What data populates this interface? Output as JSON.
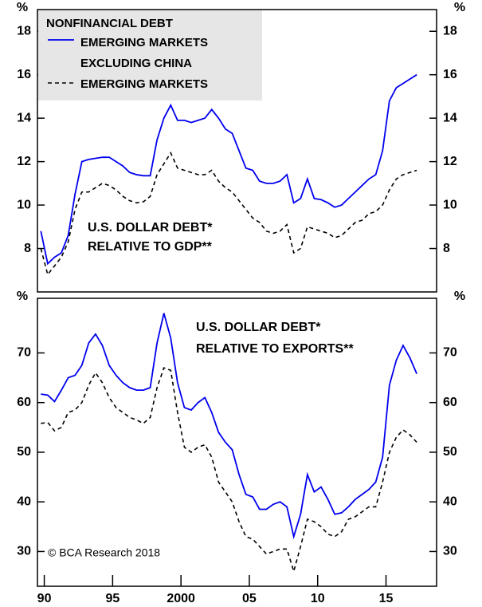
{
  "chart_data": [
    {
      "type": "line",
      "y_unit": "%",
      "legend_title": "NONFINANCIAL DEBT",
      "annotation": [
        "U.S. DOLLAR DEBT*",
        "RELATIVE TO GDP**"
      ],
      "xlim": [
        1989.5,
        2018.7
      ],
      "ylim": [
        6,
        19
      ],
      "yticks": [
        8,
        10,
        12,
        14,
        16,
        18
      ],
      "x": [
        1989.75,
        1990.25,
        1990.75,
        1991.25,
        1991.75,
        1992.25,
        1992.75,
        1993.25,
        1993.75,
        1994.25,
        1994.75,
        1995.25,
        1995.75,
        1996.25,
        1996.75,
        1997.25,
        1997.75,
        1998.25,
        1998.75,
        1999.25,
        1999.75,
        2000.25,
        2000.75,
        2001.25,
        2001.75,
        2002.25,
        2002.75,
        2003.25,
        2003.75,
        2004.25,
        2004.75,
        2005.25,
        2005.75,
        2006.25,
        2006.75,
        2007.25,
        2007.75,
        2008.25,
        2008.75,
        2009.25,
        2009.75,
        2010.25,
        2010.75,
        2011.25,
        2011.75,
        2012.25,
        2012.75,
        2013.25,
        2013.75,
        2014.25,
        2014.75,
        2015.25,
        2015.75,
        2016.25,
        2016.75,
        2017.25
      ],
      "series": [
        {
          "name": [
            "EMERGING MARKETS"
          ],
          "color": "#0000ee",
          "dashed": false,
          "values": [
            8.8,
            7.3,
            7.6,
            7.8,
            8.6,
            10.5,
            12.0,
            12.1,
            12.15,
            12.2,
            12.2,
            12.0,
            11.8,
            11.5,
            11.4,
            11.35,
            11.35,
            13.0,
            14.0,
            14.6,
            13.9,
            13.9,
            13.8,
            13.9,
            14.0,
            14.4,
            14.0,
            13.5,
            13.3,
            12.5,
            11.7,
            11.6,
            11.1,
            11.0,
            11.0,
            11.1,
            11.4,
            10.1,
            10.3,
            11.2,
            10.3,
            10.25,
            10.1,
            9.9,
            10.0,
            10.3,
            10.6,
            10.9,
            11.2,
            11.4,
            12.5,
            14.8,
            15.4,
            15.6,
            15.8,
            16.0
          ]
        },
        {
          "name": [
            "EXCLUDING CHINA",
            "EMERGING MARKETS"
          ],
          "color": "#000000",
          "dashed": true,
          "values": [
            8.0,
            6.8,
            7.2,
            7.6,
            8.3,
            9.8,
            10.6,
            10.6,
            10.8,
            11.0,
            10.9,
            10.7,
            10.4,
            10.2,
            10.1,
            10.15,
            10.4,
            11.4,
            11.9,
            12.4,
            11.7,
            11.6,
            11.5,
            11.4,
            11.4,
            11.6,
            11.1,
            10.8,
            10.6,
            10.2,
            9.8,
            9.4,
            9.2,
            8.8,
            8.7,
            8.8,
            9.1,
            7.8,
            8.0,
            9.0,
            8.9,
            8.8,
            8.7,
            8.5,
            8.6,
            8.9,
            9.2,
            9.3,
            9.6,
            9.7,
            10.0,
            10.7,
            11.2,
            11.4,
            11.5,
            11.6
          ]
        }
      ]
    },
    {
      "type": "line",
      "y_unit": "%",
      "annotation": [
        "U.S. DOLLAR DEBT*",
        "RELATIVE TO EXPORTS**"
      ],
      "credit": "© BCA Research 2018",
      "xlim": [
        1989.5,
        2018.7
      ],
      "xticks": [
        {
          "value": 1990,
          "label": "90"
        },
        {
          "value": 1995,
          "label": "95"
        },
        2000,
        {
          "value": 2005,
          "label": "05"
        },
        {
          "value": 2010,
          "label": "10"
        },
        {
          "value": 2015,
          "label": "15"
        }
      ],
      "ylim": [
        23,
        81
      ],
      "yticks": [
        30,
        40,
        50,
        60,
        70
      ],
      "x": [
        1989.75,
        1990.25,
        1990.75,
        1991.25,
        1991.75,
        1992.25,
        1992.75,
        1993.25,
        1993.75,
        1994.25,
        1994.75,
        1995.25,
        1995.75,
        1996.25,
        1996.75,
        1997.25,
        1997.75,
        1998.25,
        1998.75,
        1999.25,
        1999.75,
        2000.25,
        2000.75,
        2001.25,
        2001.75,
        2002.25,
        2002.75,
        2003.25,
        2003.75,
        2004.25,
        2004.75,
        2005.25,
        2005.75,
        2006.25,
        2006.75,
        2007.25,
        2007.75,
        2008.25,
        2008.75,
        2009.25,
        2009.75,
        2010.25,
        2010.75,
        2011.25,
        2011.75,
        2012.25,
        2012.75,
        2013.25,
        2013.75,
        2014.25,
        2014.75,
        2015.25,
        2015.75,
        2016.25,
        2016.75,
        2017.25
      ],
      "series": [
        {
          "name": [
            "EMERGING MARKETS"
          ],
          "color": "#0000ee",
          "dashed": false,
          "values": [
            61.7,
            61.5,
            60.2,
            62.5,
            65,
            65.5,
            67.5,
            72,
            73.8,
            71.5,
            67.5,
            65.5,
            64,
            63,
            62.5,
            62.5,
            63,
            72,
            78,
            73,
            64,
            59,
            58.5,
            60,
            61,
            58,
            54,
            52,
            50.5,
            45.5,
            41.5,
            41,
            38.5,
            38.5,
            39.5,
            40,
            39,
            33,
            37.5,
            45.5,
            42,
            43,
            40.5,
            37.5,
            37.8,
            39,
            40.5,
            41.5,
            42.5,
            44,
            49,
            63.5,
            68.5,
            71.5,
            69,
            65.8
          ]
        },
        {
          "name": [
            "EXCLUDING CHINA",
            "EMERGING MARKETS"
          ],
          "color": "#000000",
          "dashed": true,
          "values": [
            55.8,
            56,
            54.3,
            55,
            58,
            58.5,
            60,
            63.5,
            66,
            64,
            61,
            59,
            58,
            57,
            56.5,
            55.8,
            57,
            63,
            67,
            66.5,
            58,
            51,
            50,
            51,
            51.5,
            49,
            44,
            42,
            40,
            36,
            33,
            32.5,
            31,
            29.5,
            30,
            30.5,
            30.5,
            26,
            31,
            36.5,
            36,
            35,
            33.5,
            33,
            34,
            36.5,
            37,
            38,
            39,
            39,
            44,
            50,
            53,
            54.5,
            53.5,
            52
          ]
        }
      ]
    }
  ]
}
